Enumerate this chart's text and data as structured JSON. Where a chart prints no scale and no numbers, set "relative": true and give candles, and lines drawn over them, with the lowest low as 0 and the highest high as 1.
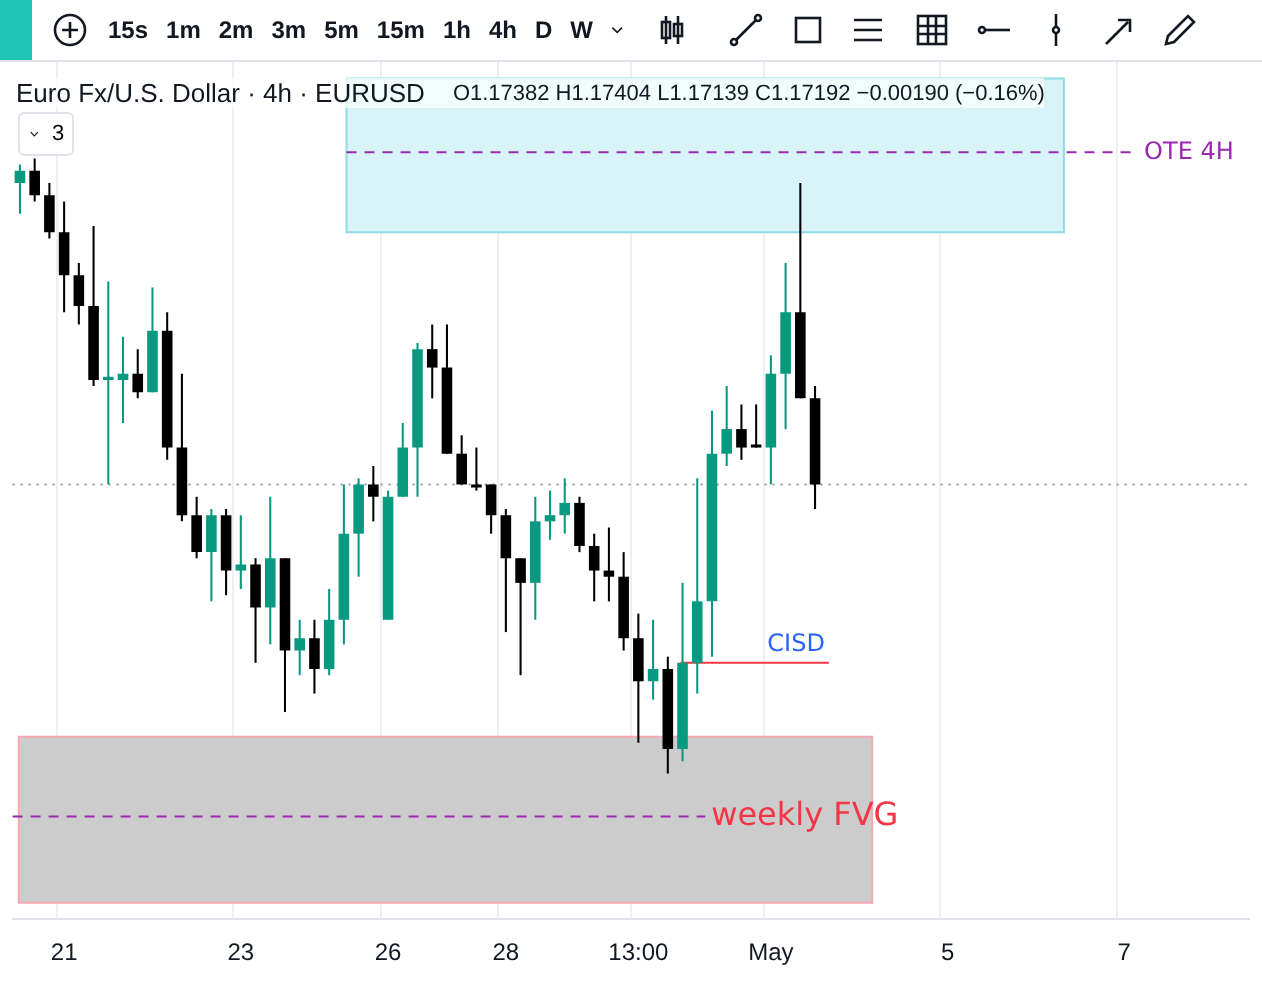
{
  "chart_data": {
    "type": "candlestick",
    "title": "Euro Fx/U.S. Dollar · 4h · EURUSD",
    "subtitle": "O1.17382 H1.17404 L1.17139 C1.17192 −0.00190 (−0.16%)",
    "annotations": [
      "15s",
      "1m",
      "2m",
      "3m",
      "5m",
      "15m",
      "1h",
      "4h",
      "D",
      "W",
      "3"
    ],
    "relative": true,
    "categories": [
      null,
      null,
      null,
      "21",
      null,
      null,
      null,
      null,
      null,
      null,
      null,
      null,
      null,
      null,
      null,
      "23",
      null,
      null,
      null,
      null,
      null,
      null,
      null,
      null,
      null,
      "26",
      null,
      null,
      null,
      null,
      null,
      null,
      null,
      "28",
      null,
      null,
      null,
      null,
      null,
      null,
      null,
      null,
      "13:00",
      null,
      null,
      null,
      null,
      null,
      null,
      null,
      null,
      "May",
      null,
      null,
      null,
      null,
      null,
      null,
      null,
      null,
      null,
      null,
      null,
      "5",
      null,
      null,
      null,
      null,
      null,
      null,
      null,
      null,
      null,
      null,
      null,
      "7",
      null,
      null,
      null,
      null,
      null,
      null,
      null,
      null
    ],
    "ohlc": [
      [
        0.96,
        0.99,
        0.91,
        0.98
      ],
      [
        0.98,
        1.0,
        0.93,
        0.94
      ],
      [
        0.94,
        0.96,
        0.87,
        0.88
      ],
      [
        0.88,
        0.93,
        0.75,
        0.81
      ],
      [
        0.81,
        0.83,
        0.73,
        0.76
      ],
      [
        0.76,
        0.89,
        0.63,
        0.64
      ],
      [
        0.64,
        0.8,
        0.47,
        0.645
      ],
      [
        0.64,
        0.71,
        0.57,
        0.65
      ],
      [
        0.65,
        0.69,
        0.61,
        0.62
      ],
      [
        0.62,
        0.79,
        0.62,
        0.72
      ],
      [
        0.72,
        0.75,
        0.51,
        0.53
      ],
      [
        0.53,
        0.65,
        0.41,
        0.42
      ],
      [
        0.42,
        0.45,
        0.35,
        0.36
      ],
      [
        0.36,
        0.43,
        0.28,
        0.42
      ],
      [
        0.42,
        0.43,
        0.29,
        0.33
      ],
      [
        0.33,
        0.42,
        0.3,
        0.34
      ],
      [
        0.34,
        0.35,
        0.18,
        0.27
      ],
      [
        0.27,
        0.45,
        0.21,
        0.35
      ],
      [
        0.35,
        0.35,
        0.1,
        0.2
      ],
      [
        0.2,
        0.25,
        0.16,
        0.22
      ],
      [
        0.22,
        0.25,
        0.13,
        0.17
      ],
      [
        0.17,
        0.3,
        0.16,
        0.25
      ],
      [
        0.25,
        0.47,
        0.21,
        0.39
      ],
      [
        0.39,
        0.48,
        0.32,
        0.47
      ],
      [
        0.47,
        0.5,
        0.41,
        0.45
      ],
      [
        0.25,
        0.46,
        0.25,
        0.45
      ],
      [
        0.45,
        0.57,
        0.45,
        0.53
      ],
      [
        0.53,
        0.7,
        0.45,
        0.69
      ],
      [
        0.69,
        0.73,
        0.61,
        0.66
      ],
      [
        0.66,
        0.73,
        0.52,
        0.52
      ],
      [
        0.52,
        0.55,
        0.47,
        0.47
      ],
      [
        0.47,
        0.53,
        0.46,
        0.465
      ],
      [
        0.47,
        0.47,
        0.39,
        0.42
      ],
      [
        0.42,
        0.43,
        0.23,
        0.35
      ],
      [
        0.35,
        0.35,
        0.16,
        0.31
      ],
      [
        0.31,
        0.45,
        0.25,
        0.41
      ],
      [
        0.41,
        0.46,
        0.38,
        0.42
      ],
      [
        0.42,
        0.48,
        0.39,
        0.44
      ],
      [
        0.44,
        0.45,
        0.36,
        0.37
      ],
      [
        0.37,
        0.39,
        0.28,
        0.33
      ],
      [
        0.33,
        0.4,
        0.28,
        0.32
      ],
      [
        0.32,
        0.36,
        0.2,
        0.22
      ],
      [
        0.22,
        0.26,
        0.05,
        0.15
      ],
      [
        0.15,
        0.25,
        0.12,
        0.17
      ],
      [
        0.17,
        0.19,
        0,
        0.04
      ],
      [
        0.04,
        0.31,
        0.02,
        0.18
      ],
      [
        0.18,
        0.48,
        0.13,
        0.28
      ],
      [
        0.28,
        0.59,
        0.19,
        0.52
      ],
      [
        0.52,
        0.63,
        0.5,
        0.56
      ],
      [
        0.56,
        0.6,
        0.51,
        0.53
      ],
      [
        0.535,
        0.6,
        0.53,
        0.53
      ],
      [
        0.53,
        0.68,
        0.47,
        0.65
      ],
      [
        0.65,
        0.83,
        0.56,
        0.75
      ],
      [
        0.75,
        0.96,
        0.61,
        0.61
      ],
      [
        0.61,
        0.63,
        0.43,
        0.47
      ],
      null,
      null,
      null,
      null,
      null,
      null,
      null,
      null,
      null,
      null,
      null,
      null,
      null,
      null,
      null,
      null,
      null,
      null,
      null,
      null,
      null,
      null,
      null,
      null,
      null,
      null,
      null,
      null,
      null
    ],
    "colors": [
      "#089981",
      "#000000",
      "#000000",
      "#000000",
      "#000000",
      "#000000",
      "#089981",
      "#089981",
      "#000000",
      "#089981",
      "#000000",
      "#000000",
      "#000000",
      "#089981",
      "#000000",
      "#089981",
      "#000000",
      "#089981",
      "#000000",
      "#089981",
      "#000000",
      "#089981",
      "#089981",
      "#089981",
      "#000000",
      "#089981",
      "#089981",
      "#089981",
      "#000000",
      "#000000",
      "#000000",
      "#000000",
      "#000000",
      "#000000",
      "#000000",
      "#089981",
      "#089981",
      "#089981",
      "#000000",
      "#000000",
      "#000000",
      "#000000",
      "#000000",
      "#089981",
      "#000000",
      "#089981",
      "#089981",
      "#089981",
      "#089981",
      "#000000",
      "#000000",
      "#089981",
      "#089981",
      "#000000",
      "#000000",
      null,
      null,
      null,
      null,
      null,
      null,
      null,
      null,
      null,
      null,
      null,
      null,
      null,
      null,
      null,
      null,
      null,
      null,
      null,
      null,
      null,
      null,
      null,
      null,
      null,
      null,
      null,
      null,
      null
    ],
    "ref_lines": [
      {
        "axis": "y",
        "value": 1.01,
        "label": "OTE 4H",
        "color": "#9c27b0",
        "line_style": "dashed"
      },
      {
        "axis": "y",
        "value": -0.07,
        "label": "weekly FVG",
        "color": "#9c27b0",
        "line_style": "dashed"
      },
      {
        "axis": "y",
        "value": 0.18,
        "label": "CISD",
        "color": "#f23645",
        "line_style": "solid"
      },
      {
        "axis": "y",
        "value": 0.47,
        "color": "#9598a1",
        "line_style": "dotted"
      }
    ],
    "bands": [
      {
        "axis": "y",
        "from": 0.88,
        "to": 1.13,
        "color": "#d8f4f8"
      },
      {
        "axis": "y",
        "from": -0.21,
        "to": 0.06,
        "color": "#cccccc"
      }
    ],
    "grid": "x",
    "legend": false
  }
}
